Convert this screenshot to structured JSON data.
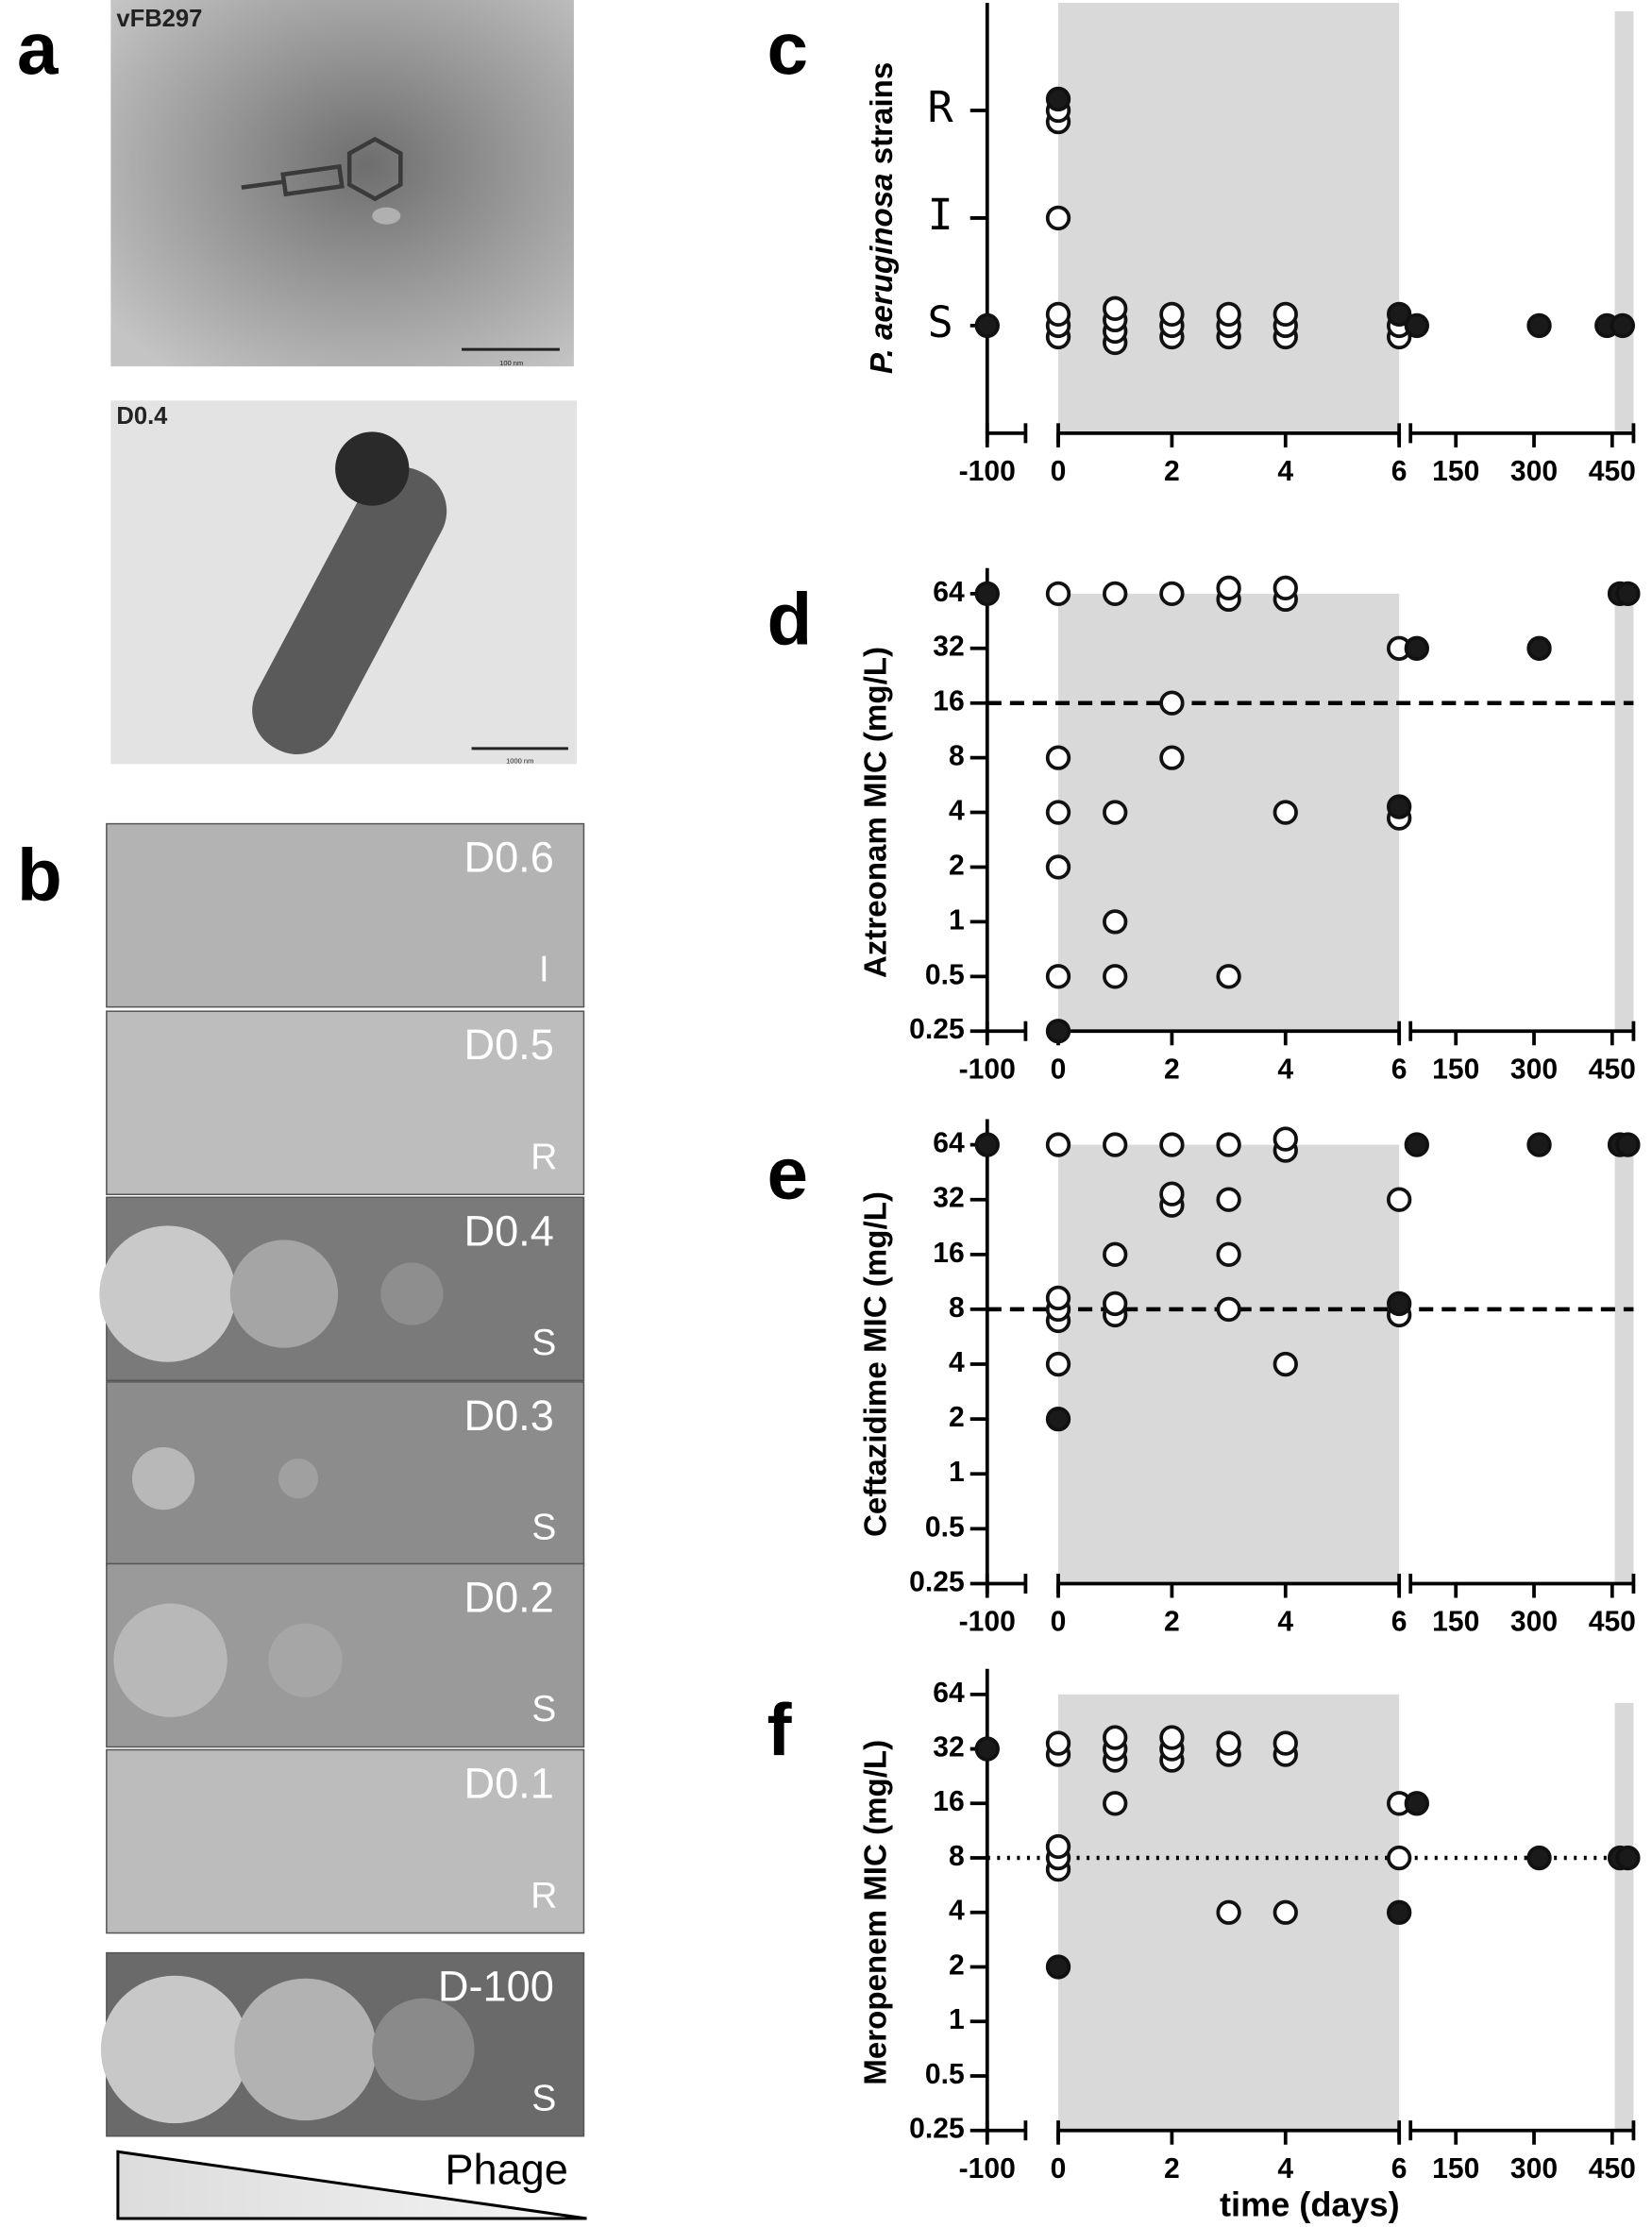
{
  "panel_labels": [
    "a",
    "b",
    "c",
    "d",
    "e",
    "f"
  ],
  "micrographs": [
    {
      "label": "vFB297",
      "scale_bar": "100 nm"
    },
    {
      "label": "D0.4",
      "scale_bar": "1000 nm"
    }
  ],
  "plates": [
    {
      "label": "D0.6",
      "phenotype": "I"
    },
    {
      "label": "D0.5",
      "phenotype": "R"
    },
    {
      "label": "D0.4",
      "phenotype": "S"
    },
    {
      "label": "D0.3",
      "phenotype": "S"
    },
    {
      "label": "D0.2",
      "phenotype": "S"
    },
    {
      "label": "D0.1",
      "phenotype": "R"
    },
    {
      "label": "D-100",
      "phenotype": "S"
    }
  ],
  "gradient_label": "Phage",
  "chart_data": [
    {
      "type": "scatter",
      "ylabel_parts": [
        {
          "text": "P. aeruginosa",
          "italic": true
        },
        {
          "text": " strains",
          "italic": false
        }
      ],
      "ylim": [
        -1,
        3
      ],
      "yticks": [
        {
          "value": 0,
          "label": "S"
        },
        {
          "value": 1,
          "label": "I"
        },
        {
          "value": 2,
          "label": "R"
        }
      ],
      "log_scale": false,
      "x_segments": [
        {
          "xlim": [
            -100,
            -25
          ],
          "xticks": [
            -100
          ]
        },
        {
          "xlim": [
            0,
            6
          ],
          "xticks": [
            0,
            2,
            4,
            6
          ]
        },
        {
          "xlim": [
            63,
            491
          ],
          "xticks": [
            150,
            300,
            450
          ]
        }
      ],
      "shaded_regions": [
        [
          0,
          6
        ],
        [
          455,
          491
        ]
      ],
      "shade_color": "#d9d9d9",
      "series": [
        {
          "marker": "open",
          "color": "#ffffff",
          "x": [
            0,
            0,
            0,
            0,
            0,
            0,
            1,
            1,
            1,
            1,
            2,
            2,
            2,
            3,
            3,
            3,
            4,
            4,
            4,
            6,
            6
          ],
          "values": [
            0,
            0,
            0,
            1,
            2,
            2,
            0,
            0,
            0,
            0,
            0,
            0,
            0,
            0,
            0,
            0,
            0,
            0,
            0,
            0,
            0
          ]
        },
        {
          "marker": "filled",
          "color": "#1a1a1a",
          "x": [
            -100,
            0,
            6,
            75,
            310,
            440,
            470
          ],
          "values": [
            0,
            2,
            0,
            0,
            0,
            0,
            0
          ]
        }
      ]
    },
    {
      "type": "scatter",
      "ylabel": "Aztreonam MIC (mg/L)",
      "ylim": [
        0.25,
        64
      ],
      "yticks": [
        0.25,
        0.5,
        1,
        2,
        4,
        8,
        16,
        32,
        64
      ],
      "log_scale": true,
      "x_segments": [
        {
          "xlim": [
            -100,
            -25
          ],
          "xticks": [
            -100
          ]
        },
        {
          "xlim": [
            0,
            6
          ],
          "xticks": [
            0,
            2,
            4,
            6
          ]
        },
        {
          "xlim": [
            63,
            491
          ],
          "xticks": [
            150,
            300,
            450
          ]
        }
      ],
      "shaded_regions": [
        [
          0,
          6
        ],
        [
          455,
          491
        ]
      ],
      "shade_color": "#d9d9d9",
      "reference_line": {
        "value": 16,
        "style": "dashed"
      },
      "series": [
        {
          "marker": "open",
          "color": "#ffffff",
          "x": [
            0,
            0,
            0,
            0,
            0,
            1,
            1,
            1,
            1,
            2,
            2,
            2,
            3,
            3,
            3,
            4,
            4,
            4,
            6,
            6
          ],
          "values": [
            64,
            8,
            4,
            2,
            0.5,
            64,
            4,
            1,
            0.5,
            64,
            16,
            8,
            64,
            64,
            0.5,
            64,
            64,
            4,
            32,
            4
          ]
        },
        {
          "marker": "filled",
          "color": "#1a1a1a",
          "x": [
            -100,
            0,
            6,
            75,
            310,
            465,
            480
          ],
          "values": [
            64,
            0.25,
            4,
            32,
            32,
            64,
            64
          ]
        }
      ]
    },
    {
      "type": "scatter",
      "ylabel": "Ceftazidime MIC (mg/L)",
      "ylim": [
        0.25,
        64
      ],
      "yticks": [
        0.25,
        0.5,
        1,
        2,
        4,
        8,
        16,
        32,
        64
      ],
      "log_scale": true,
      "x_segments": [
        {
          "xlim": [
            -100,
            -25
          ],
          "xticks": [
            -100
          ]
        },
        {
          "xlim": [
            0,
            6
          ],
          "xticks": [
            0,
            2,
            4,
            6
          ]
        },
        {
          "xlim": [
            63,
            491
          ],
          "xticks": [
            150,
            300,
            450
          ]
        }
      ],
      "shaded_regions": [
        [
          0,
          6
        ],
        [
          455,
          491
        ]
      ],
      "shade_color": "#d9d9d9",
      "reference_line": {
        "value": 8,
        "style": "dashed"
      },
      "series": [
        {
          "marker": "open",
          "color": "#ffffff",
          "x": [
            0,
            0,
            0,
            0,
            0,
            1,
            1,
            1,
            1,
            2,
            2,
            2,
            3,
            3,
            3,
            3,
            4,
            4,
            4,
            6,
            6
          ],
          "values": [
            64,
            8,
            8,
            8,
            4,
            64,
            16,
            8,
            8,
            64,
            32,
            32,
            64,
            32,
            16,
            8,
            64,
            64,
            4,
            32,
            8
          ]
        },
        {
          "marker": "filled",
          "color": "#1a1a1a",
          "x": [
            -100,
            0,
            6,
            75,
            310,
            465,
            480
          ],
          "values": [
            64,
            2,
            8,
            64,
            64,
            64,
            64
          ]
        }
      ]
    },
    {
      "type": "scatter",
      "ylabel": "Meropenem MIC (mg/L)",
      "xlabel": "time (days)",
      "ylim": [
        0.25,
        64
      ],
      "yticks": [
        0.25,
        0.5,
        1,
        2,
        4,
        8,
        16,
        32,
        64
      ],
      "log_scale": true,
      "x_segments": [
        {
          "xlim": [
            -100,
            -25
          ],
          "xticks": [
            -100
          ]
        },
        {
          "xlim": [
            0,
            6
          ],
          "xticks": [
            0,
            2,
            4,
            6
          ]
        },
        {
          "xlim": [
            63,
            491
          ],
          "xticks": [
            150,
            300,
            450
          ]
        }
      ],
      "shaded_regions": [
        [
          0,
          6
        ],
        [
          455,
          491
        ]
      ],
      "shade_color": "#d9d9d9",
      "reference_line": {
        "value": 8,
        "style": "dotted"
      },
      "series": [
        {
          "marker": "open",
          "color": "#ffffff",
          "x": [
            0,
            0,
            0,
            0,
            0,
            1,
            1,
            1,
            1,
            2,
            2,
            2,
            3,
            3,
            3,
            4,
            4,
            4,
            6,
            6
          ],
          "values": [
            32,
            32,
            8,
            8,
            8,
            32,
            32,
            32,
            16,
            32,
            32,
            32,
            32,
            32,
            4,
            32,
            32,
            4,
            16,
            8
          ]
        },
        {
          "marker": "filled",
          "color": "#1a1a1a",
          "x": [
            -100,
            0,
            6,
            75,
            310,
            465,
            480
          ],
          "values": [
            32,
            2,
            4,
            16,
            8,
            8,
            8
          ]
        }
      ]
    }
  ]
}
